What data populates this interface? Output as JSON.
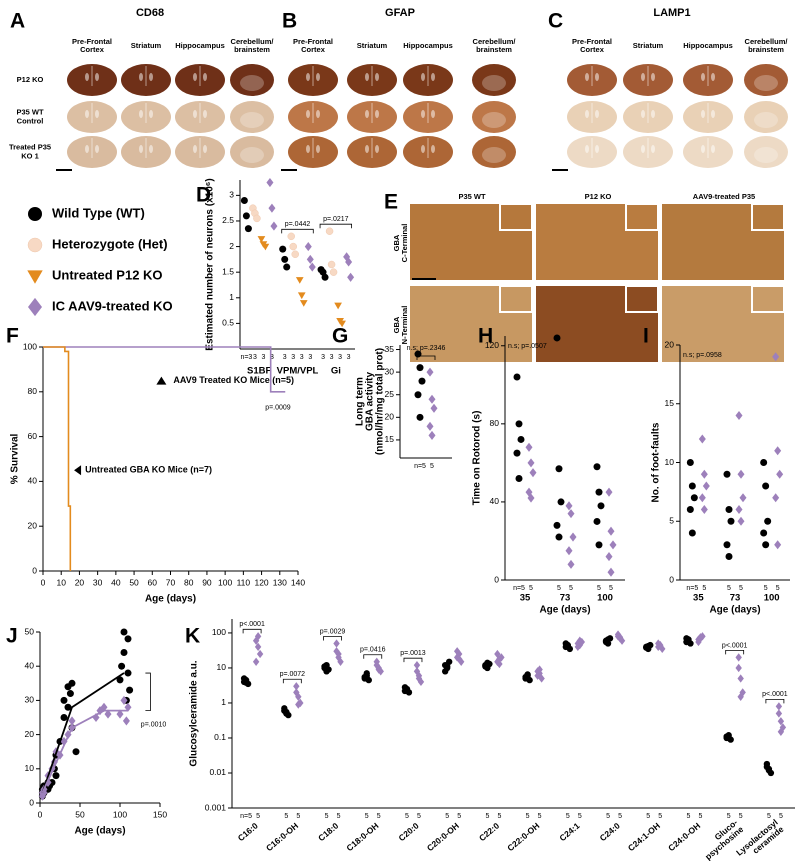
{
  "image_panels": [
    {
      "panel": "A",
      "title": "CD68",
      "columns": [
        [
          "Pre-Frontal",
          "Cortex"
        ],
        [
          "Striatum"
        ],
        [
          "Hippocampus"
        ],
        [
          "Cerebellum/",
          "brainstem"
        ]
      ],
      "rows": [
        [
          "P12 KO"
        ],
        [
          "P35 WT",
          "Control"
        ],
        [
          "Treated P35",
          "KO 1"
        ]
      ]
    },
    {
      "panel": "B",
      "title": "GFAP",
      "columns": [
        [
          "Pre-Frontal",
          "Cortex"
        ],
        [
          "Striatum"
        ],
        [
          "Hippocampus"
        ],
        [
          "Cerebellum/",
          "brainstem"
        ]
      ]
    },
    {
      "panel": "C",
      "title": "LAMP1",
      "columns": [
        [
          "Pre-Frontal",
          "Cortex"
        ],
        [
          "Striatum"
        ],
        [
          "Hippocampus"
        ],
        [
          "Cerebellum/",
          "brainstem"
        ]
      ]
    },
    {
      "panel": "E",
      "columns": [
        "P35 WT",
        "P12 KO",
        "AAV9-treated P35"
      ],
      "rows": [
        [
          "GBA",
          "C-Terminal"
        ],
        [
          "GBA",
          "N-Terminal"
        ]
      ]
    }
  ],
  "chart_data": [
    {
      "panel": "D",
      "type": "grouped_scatter",
      "y_label": "Estimated number of neurons (x10⁶)",
      "ylim": [
        0,
        3.3
      ],
      "yticks": [
        0.5,
        1,
        1.5,
        2,
        2.5,
        3
      ],
      "categories": [
        "S1BF",
        "VPM/VPL",
        "Gi"
      ],
      "series": [
        {
          "name": "Wild Type (WT)",
          "color": "#000000",
          "marker": "circle",
          "values": [
            [
              2.9,
              2.6,
              2.35
            ],
            [
              1.95,
              1.75,
              1.6
            ],
            [
              1.55,
              1.5,
              1.4
            ]
          ]
        },
        {
          "name": "Heterozygote (Het)",
          "color": "#f7d9c4",
          "marker": "circle",
          "values": [
            [
              2.75,
              2.65,
              2.55
            ],
            [
              2.2,
              2.0,
              1.85
            ],
            [
              2.3,
              1.65,
              1.5
            ]
          ]
        },
        {
          "name": "Untreated P12 KO",
          "color": "#e38b1e",
          "marker": "triangle",
          "values": [
            [
              2.15,
              2.05,
              2.0
            ],
            [
              1.35,
              1.05,
              0.9
            ],
            [
              0.85,
              0.55,
              0.5
            ]
          ]
        },
        {
          "name": "IC AAV9-treated KO",
          "color": "#9d80bb",
          "marker": "diamond",
          "values": [
            [
              3.25,
              2.75,
              2.4
            ],
            [
              2.0,
              1.75,
              1.6
            ],
            [
              1.8,
              1.7,
              1.4
            ]
          ]
        }
      ],
      "n_labels": [
        [
          "n=3",
          "3",
          "3",
          "3"
        ],
        [
          "3",
          "3",
          "3",
          "3"
        ],
        [
          "3",
          "3",
          "3",
          "3"
        ]
      ],
      "p_labels": [
        null,
        "p=.0442",
        "p=.0217"
      ]
    },
    {
      "panel": "F",
      "type": "line",
      "y_label": "% Survival",
      "x_label": "Age (days)",
      "xlim": [
        0,
        140
      ],
      "xticks": [
        0,
        10,
        20,
        30,
        40,
        50,
        60,
        70,
        80,
        90,
        100,
        110,
        120,
        130,
        140
      ],
      "ylim": [
        0,
        100
      ],
      "yticks": [
        0,
        20,
        40,
        60,
        80,
        100
      ],
      "series": [
        {
          "name": "AAV9 Treated KO Mice (n=5)",
          "color": "#9d80bb",
          "x": [
            0,
            125,
            125,
            133
          ],
          "values": [
            100,
            100,
            80,
            80
          ]
        },
        {
          "name": "Untreated GBA KO Mice (n=7)",
          "color": "#e38b1e",
          "x": [
            0,
            12,
            12,
            14,
            14,
            15,
            15
          ],
          "values": [
            100,
            100,
            98,
            98,
            29,
            29,
            0
          ]
        }
      ],
      "p_label": "p=.0009"
    },
    {
      "panel": "G",
      "type": "grouped_scatter",
      "y_label": [
        "Long term",
        "GBA activity",
        "(nmol/hr/mg total prot)"
      ],
      "ylim": [
        11,
        36
      ],
      "yticks": [
        15,
        20,
        25,
        30,
        35
      ],
      "categories": [
        null
      ],
      "series": [
        {
          "color": "#000000",
          "marker": "circle",
          "values": [
            [
              34,
              31,
              28,
              25,
              20
            ]
          ]
        },
        {
          "color": "#9d80bb",
          "marker": "diamond",
          "values": [
            [
              30,
              24,
              22,
              18,
              16
            ]
          ]
        }
      ],
      "n_labels": [
        [
          "n=5",
          "5"
        ]
      ],
      "annotation": "n.s; p=.2346"
    },
    {
      "panel": "H",
      "type": "grouped_scatter",
      "y_label": "Time on Rotorod (s)",
      "x_label": "Age (days)",
      "ylim": [
        0,
        125
      ],
      "yticks": [
        0,
        40,
        80,
        120
      ],
      "categories": [
        "35",
        "73",
        "100"
      ],
      "series": [
        {
          "color": "#000000",
          "marker": "circle",
          "values": [
            [
              104,
              80,
              72,
              65,
              52
            ],
            [
              124,
              57,
              40,
              28,
              22
            ],
            [
              58,
              45,
              38,
              30,
              18
            ]
          ]
        },
        {
          "color": "#9d80bb",
          "marker": "diamond",
          "values": [
            [
              68,
              60,
              55,
              45,
              42
            ],
            [
              38,
              34,
              22,
              15,
              8
            ],
            [
              45,
              25,
              18,
              12,
              4
            ]
          ]
        }
      ],
      "n_labels": [
        [
          "n=5",
          "5"
        ],
        [
          "5",
          "5"
        ],
        [
          "5",
          "5"
        ]
      ],
      "annotation": "n.s; p=.0507"
    },
    {
      "panel": "I",
      "type": "grouped_scatter",
      "y_label": "No. of foot-faults",
      "x_label": "Age (days)",
      "ylim": [
        0,
        20
      ],
      "yticks": [
        0,
        5,
        10,
        15,
        20
      ],
      "categories": [
        "35",
        "73",
        "100"
      ],
      "series": [
        {
          "color": "#000000",
          "marker": "circle",
          "values": [
            [
              10,
              8,
              7,
              6,
              4
            ],
            [
              9,
              6,
              5,
              3,
              2
            ],
            [
              10,
              8,
              5,
              4,
              3
            ]
          ]
        },
        {
          "color": "#9d80bb",
          "marker": "diamond",
          "values": [
            [
              12,
              9,
              8,
              7,
              6
            ],
            [
              14,
              9,
              7,
              6,
              5
            ],
            [
              19,
              11,
              9,
              7,
              3
            ]
          ]
        }
      ],
      "n_labels": [
        [
          "n=5",
          "5"
        ],
        [
          "5",
          "5"
        ],
        [
          "5",
          "5"
        ]
      ],
      "annotation": "n.s; p=.0958"
    },
    {
      "panel": "J",
      "type": "scatter",
      "x_label": "Age (days)",
      "xlim": [
        0,
        150
      ],
      "xticks": [
        0,
        50,
        100,
        150
      ],
      "ylim": [
        0,
        50
      ],
      "yticks": [
        0,
        10,
        20,
        30,
        40,
        50
      ],
      "series": [
        {
          "color": "#000000",
          "marker": "circle",
          "x": [
            3,
            3,
            3,
            5,
            5,
            10,
            10,
            12,
            15,
            18,
            20,
            20,
            25,
            30,
            30,
            35,
            35,
            38,
            40,
            40,
            45,
            100,
            102,
            105,
            105,
            108,
            110,
            110,
            112
          ],
          "values": [
            2,
            3,
            4,
            3,
            5,
            4,
            6,
            5,
            6,
            10,
            14,
            8,
            18,
            25,
            30,
            28,
            34,
            32,
            35,
            22,
            15,
            36,
            40,
            44,
            50,
            30,
            48,
            38,
            33
          ]
        },
        {
          "color": "#9d80bb",
          "marker": "diamond",
          "x": [
            3,
            3,
            5,
            5,
            10,
            10,
            15,
            18,
            20,
            25,
            30,
            35,
            40,
            40,
            70,
            75,
            80,
            85,
            100,
            105,
            108,
            110
          ],
          "values": [
            2,
            3,
            3,
            4,
            6,
            8,
            10,
            12,
            15,
            14,
            18,
            20,
            22,
            24,
            25,
            27,
            28,
            26,
            26,
            30,
            24,
            28
          ]
        }
      ],
      "trend_lines": [
        {
          "color": "#000000",
          "x": [
            3,
            40,
            105
          ],
          "values": [
            3,
            28,
            38
          ]
        },
        {
          "color": "#9d80bb",
          "x": [
            3,
            40,
            80,
            110
          ],
          "values": [
            3,
            22,
            27,
            27
          ]
        }
      ],
      "p_label": "p=.0010"
    },
    {
      "panel": "K",
      "type": "grouped_scatter",
      "y_label": "Glucosylceramide a.u.",
      "log_scale": true,
      "ylim": [
        0.001,
        250
      ],
      "yticks": [
        0.001,
        0.01,
        0.1,
        1,
        10,
        100
      ],
      "categories": [
        [
          "C16:0"
        ],
        [
          "C16:0-OH"
        ],
        [
          "C18:0"
        ],
        [
          "C18:0-OH"
        ],
        [
          "C20:0"
        ],
        [
          "C20:0-OH"
        ],
        [
          "C22:0"
        ],
        [
          "C22:0-OH"
        ],
        [
          "C24:1"
        ],
        [
          "C24:0"
        ],
        [
          "C24:1-OH"
        ],
        [
          "C24:0-OH"
        ],
        [
          "Gluco-",
          "psychosine"
        ],
        [
          "Lysolactosyl",
          "ceramide"
        ]
      ],
      "series": [
        {
          "color": "#000000",
          "marker": "circle",
          "values": [
            [
              4,
              4.5,
              3.5,
              5,
              3.8
            ],
            [
              0.6,
              0.5,
              0.45,
              0.7,
              0.55
            ],
            [
              10,
              12,
              9,
              11,
              8
            ],
            [
              5,
              6,
              4.5,
              5.5,
              7
            ],
            [
              2.2,
              2.5,
              2,
              2.8,
              2.4
            ],
            [
              12,
              10,
              15,
              8,
              11
            ],
            [
              12,
              10,
              13,
              11,
              14
            ],
            [
              5,
              6,
              4.5,
              5.5,
              6.5
            ],
            [
              40,
              45,
              35,
              50,
              42
            ],
            [
              60,
              50,
              70,
              55,
              65
            ],
            [
              40,
              35,
              45,
              38,
              42
            ],
            [
              55,
              60,
              50,
              70,
              65
            ],
            [
              0.1,
              0.12,
              0.09,
              0.11,
              0.1
            ],
            [
              0.015,
              0.012,
              0.01,
              0.018,
              0.013
            ]
          ]
        },
        {
          "color": "#9d80bb",
          "marker": "diamond",
          "values": [
            [
              60,
              40,
              25,
              15,
              80
            ],
            [
              2,
              1.5,
              1,
              3,
              0.9
            ],
            [
              30,
              25,
              15,
              50,
              20
            ],
            [
              12,
              10,
              8,
              15,
              9
            ],
            [
              8,
              5,
              4,
              12,
              6
            ],
            [
              20,
              25,
              15,
              30,
              18
            ],
            [
              15,
              18,
              20,
              25,
              13
            ],
            [
              6,
              7,
              5,
              8,
              9
            ],
            [
              50,
              45,
              55,
              40,
              60
            ],
            [
              80,
              70,
              60,
              90,
              75
            ],
            [
              40,
              45,
              35,
              50,
              42
            ],
            [
              65,
              70,
              80,
              55,
              75
            ],
            [
              10,
              5,
              2,
              20,
              1.5
            ],
            [
              0.5,
              0.3,
              0.2,
              0.8,
              0.15
            ]
          ]
        }
      ],
      "n_labels": [
        [
          "n=5",
          "5"
        ],
        [
          "5",
          "5"
        ],
        [
          "5",
          "5"
        ],
        [
          "5",
          "5"
        ],
        [
          "5",
          "5"
        ],
        [
          "5",
          "5"
        ],
        [
          "5",
          "5"
        ],
        [
          "5",
          "5"
        ],
        [
          "5",
          "5"
        ],
        [
          "5",
          "5"
        ],
        [
          "5",
          "5"
        ],
        [
          "5",
          "5"
        ],
        [
          "5",
          "5"
        ],
        [
          "5",
          "5"
        ]
      ],
      "p_labels": [
        "p<.0001",
        "p=.0072",
        "p=.0029",
        "p=.0416",
        "p=.0013",
        null,
        null,
        null,
        null,
        null,
        null,
        null,
        "p<.0001",
        "p<.0001"
      ]
    }
  ]
}
